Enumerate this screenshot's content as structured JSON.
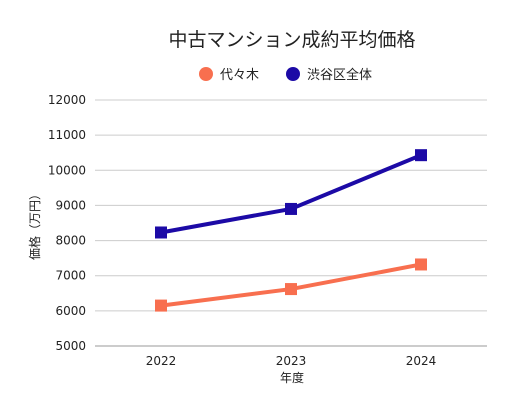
{
  "chart_data": {
    "type": "line",
    "title": "中古マンション成約平均価格",
    "xlabel": "年度",
    "ylabel": "価格（万円）",
    "categories": [
      "2022",
      "2023",
      "2024"
    ],
    "ylim": [
      5000,
      12000
    ],
    "yticks": [
      5000,
      6000,
      7000,
      8000,
      9000,
      10000,
      11000,
      12000
    ],
    "grid": "horizontal",
    "legend_position": "top-center",
    "series": [
      {
        "name": "代々木",
        "color": "#f86f4f",
        "values": [
          6150,
          6620,
          7320
        ]
      },
      {
        "name": "渋谷区全体",
        "color": "#1c0aa6",
        "values": [
          8230,
          8900,
          10430
        ]
      }
    ]
  }
}
